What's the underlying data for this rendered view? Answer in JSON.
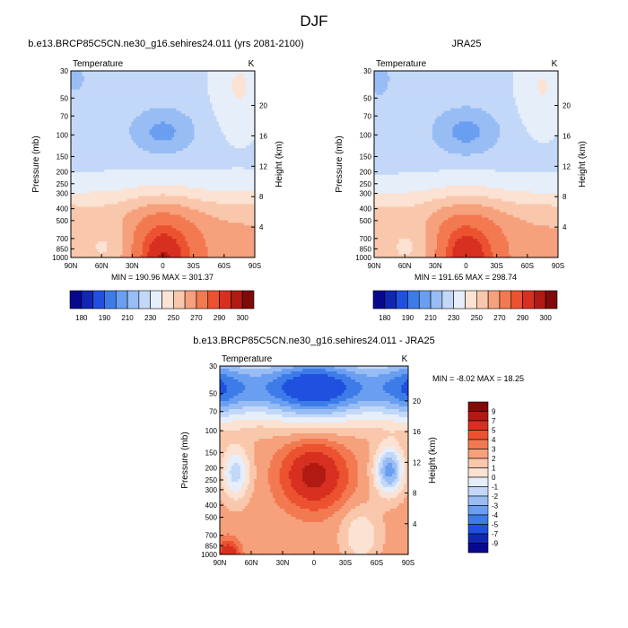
{
  "page": {
    "season_title": "DJF"
  },
  "chart_data": [
    {
      "type": "heatmap",
      "id": "model",
      "title": "b.e13.BRCP85C5CN.ne30_g16.sehires24.011 (yrs 2081-2100)",
      "left_label": "Temperature",
      "right_label": "K",
      "ylabel": "Pressure (mb)",
      "y2label": "Height (km)",
      "x_ticks": [
        "90N",
        "60N",
        "30N",
        "0",
        "30S",
        "60S",
        "90S"
      ],
      "y_ticks": [
        "30",
        "50",
        "70",
        "100",
        "150",
        "200",
        "250",
        "300",
        "400",
        "500",
        "700",
        "850",
        "1000"
      ],
      "y2_ticks": [
        "20",
        "16",
        "12",
        "8",
        "4"
      ],
      "min_max": "MIN = 190.96  MAX = 301.37",
      "colorbar_labels": [
        "180",
        "190",
        "210",
        "230",
        "250",
        "270",
        "290",
        "300"
      ],
      "colors": [
        "#08088e",
        "#1027b2",
        "#2050e0",
        "#3d7ce8",
        "#6a9ef0",
        "#98bdf4",
        "#c3d8f8",
        "#e6eefa",
        "#fbe2d2",
        "#f9c7ab",
        "#f6a07c",
        "#f27950",
        "#ec5230",
        "#d83020",
        "#b01a12",
        "#7f0a08"
      ]
    },
    {
      "type": "heatmap",
      "id": "obs",
      "title": "JRA25",
      "left_label": "Temperature",
      "right_label": "K",
      "ylabel": "Pressure (mb)",
      "y2label": "Height (km)",
      "x_ticks": [
        "90N",
        "60N",
        "30N",
        "0",
        "30S",
        "60S",
        "90S"
      ],
      "y_ticks": [
        "30",
        "50",
        "70",
        "100",
        "150",
        "200",
        "250",
        "300",
        "400",
        "500",
        "700",
        "850",
        "1000"
      ],
      "y2_ticks": [
        "20",
        "16",
        "12",
        "8",
        "4"
      ],
      "min_max": "MIN = 191.65  MAX = 298.74",
      "colorbar_labels": [
        "180",
        "190",
        "210",
        "230",
        "250",
        "270",
        "290",
        "300"
      ]
    },
    {
      "type": "heatmap",
      "id": "diff",
      "title": "b.e13.BRCP85C5CN.ne30_g16.sehires24.011 - JRA25",
      "left_label": "Temperature",
      "right_label": "K",
      "ylabel": "Pressure (mb)",
      "y2label": "Height (km)",
      "x_ticks": [
        "90N",
        "60N",
        "30N",
        "0",
        "30S",
        "60S",
        "90S"
      ],
      "y_ticks": [
        "30",
        "50",
        "70",
        "100",
        "150",
        "200",
        "250",
        "300",
        "400",
        "500",
        "700",
        "850",
        "1000"
      ],
      "y2_ticks": [
        "20",
        "16",
        "12",
        "8",
        "4"
      ],
      "min_max": "MIN = -8.02  MAX = 18.25",
      "colorbar_labels": [
        "9",
        "7",
        "5",
        "4",
        "3",
        "2",
        "1",
        "0",
        "-1",
        "-2",
        "-3",
        "-4",
        "-5",
        "-7",
        "-9"
      ],
      "colors": [
        "#7f0a08",
        "#b01a12",
        "#d83020",
        "#ec5230",
        "#f27950",
        "#f6a07c",
        "#f9c7ab",
        "#fbe2d2",
        "#e6eefa",
        "#c3d8f8",
        "#98bdf4",
        "#6a9ef0",
        "#3d7ce8",
        "#2050e0",
        "#1027b2",
        "#08088e"
      ]
    }
  ]
}
